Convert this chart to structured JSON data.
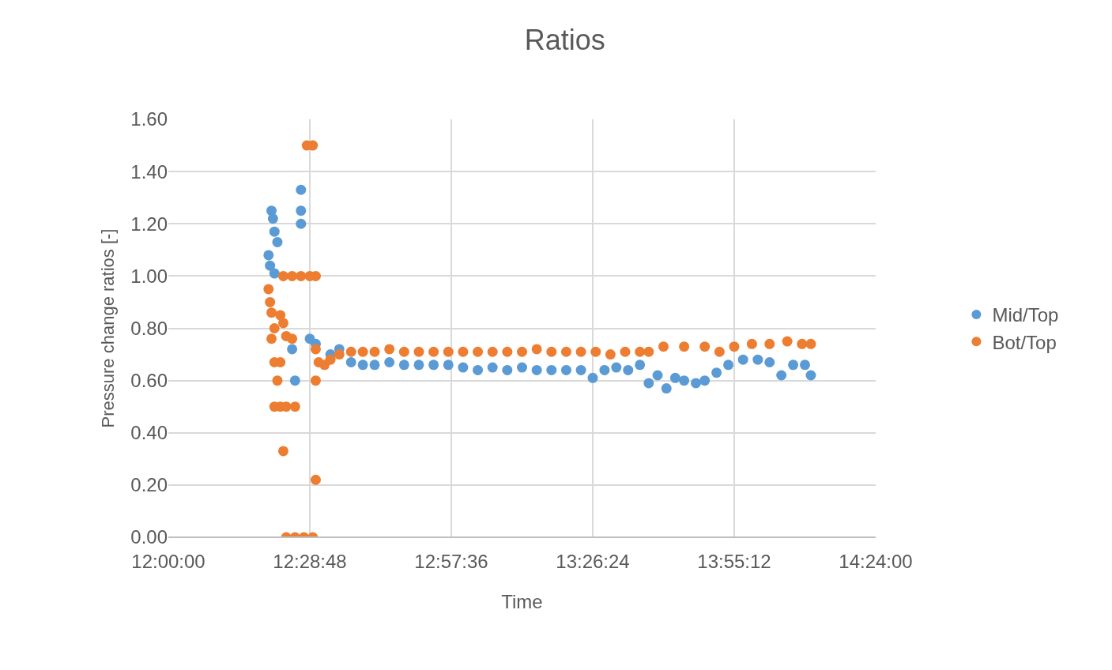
{
  "chart_data": {
    "type": "scatter",
    "title": "Ratios",
    "xlabel": "Time",
    "ylabel": "Pressure change ratios [-]",
    "xlim": [
      12,
      14.4
    ],
    "xticks": [
      {
        "value": 12,
        "label": "12:00:00"
      },
      {
        "value": 12.48,
        "label": "12:28:48"
      },
      {
        "value": 12.96,
        "label": "12:57:36"
      },
      {
        "value": 13.44,
        "label": "13:26:24"
      },
      {
        "value": 13.92,
        "label": "13:55:12"
      },
      {
        "value": 14.4,
        "label": "14:24:00"
      }
    ],
    "ylim": [
      0,
      1.6
    ],
    "yticks": [
      {
        "value": 0,
        "label": "0.00"
      },
      {
        "value": 0.2,
        "label": "0.20"
      },
      {
        "value": 0.4,
        "label": "0.40"
      },
      {
        "value": 0.6,
        "label": "0.60"
      },
      {
        "value": 0.8,
        "label": "0.80"
      },
      {
        "value": 1.0,
        "label": "1.00"
      },
      {
        "value": 1.2,
        "label": "1.20"
      },
      {
        "value": 1.4,
        "label": "1.40"
      },
      {
        "value": 1.6,
        "label": "1.60"
      }
    ],
    "grid": true,
    "legend": "right",
    "marker": "circle",
    "series": [
      {
        "name": "Mid/Top",
        "color": "#5b9bd5",
        "x": [
          12.34,
          12.345,
          12.35,
          12.355,
          12.36,
          12.365,
          12.37,
          12.36,
          12.43,
          12.42,
          12.45,
          12.45,
          12.45,
          12.48,
          12.5,
          12.51,
          12.52,
          12.55,
          12.58,
          12.62,
          12.66,
          12.7,
          12.75,
          12.8,
          12.85,
          12.9,
          12.95,
          13.0,
          13.05,
          13.1,
          13.15,
          13.2,
          13.25,
          13.3,
          13.35,
          13.4,
          13.44,
          13.48,
          13.52,
          13.56,
          13.6,
          13.63,
          13.66,
          13.69,
          13.72,
          13.75,
          13.79,
          13.82,
          13.86,
          13.9,
          13.95,
          14.0,
          14.04,
          14.08,
          14.12,
          14.16,
          14.18
        ],
        "values": [
          1.08,
          1.04,
          1.25,
          1.22,
          1.17,
          null,
          1.13,
          1.01,
          0.6,
          0.72,
          1.33,
          1.25,
          1.2,
          0.76,
          0.74,
          null,
          null,
          0.7,
          0.72,
          0.67,
          0.66,
          0.66,
          0.67,
          0.66,
          0.66,
          0.66,
          0.66,
          0.65,
          0.64,
          0.65,
          0.64,
          0.65,
          0.64,
          0.64,
          0.64,
          0.64,
          0.61,
          0.64,
          0.65,
          0.64,
          0.66,
          0.59,
          0.62,
          0.57,
          0.61,
          0.6,
          0.59,
          0.6,
          0.63,
          0.66,
          0.68,
          0.68,
          0.67,
          0.62,
          0.66,
          0.66,
          0.62
        ]
      },
      {
        "name": "Bot/Top",
        "color": "#ed7d31",
        "x": [
          12.34,
          12.345,
          12.35,
          12.36,
          12.35,
          12.38,
          12.39,
          12.4,
          12.42,
          12.36,
          12.38,
          12.37,
          12.36,
          12.38,
          12.4,
          12.43,
          12.39,
          12.5,
          12.39,
          12.42,
          12.45,
          12.48,
          12.5,
          12.47,
          12.49,
          12.4,
          12.43,
          12.46,
          12.49,
          12.5,
          12.5,
          12.51,
          12.53,
          12.55,
          12.58,
          12.62,
          12.66,
          12.7,
          12.75,
          12.8,
          12.85,
          12.9,
          12.95,
          13.0,
          13.05,
          13.1,
          13.15,
          13.2,
          13.25,
          13.3,
          13.35,
          13.4,
          13.45,
          13.5,
          13.55,
          13.6,
          13.63,
          13.68,
          13.75,
          13.82,
          13.87,
          13.92,
          13.98,
          14.04,
          14.1,
          14.15,
          14.18
        ],
        "values": [
          0.95,
          0.9,
          0.86,
          0.8,
          0.76,
          0.85,
          0.82,
          0.77,
          0.76,
          0.67,
          0.67,
          0.6,
          0.5,
          0.5,
          0.5,
          0.5,
          0.33,
          0.22,
          1.0,
          1.0,
          1.0,
          1.0,
          1.0,
          1.5,
          1.5,
          0.0,
          0.0,
          0.0,
          0.0,
          0.6,
          0.72,
          0.67,
          0.66,
          0.68,
          0.7,
          0.71,
          0.71,
          0.71,
          0.72,
          0.71,
          0.71,
          0.71,
          0.71,
          0.71,
          0.71,
          0.71,
          0.71,
          0.71,
          0.72,
          0.71,
          0.71,
          0.71,
          0.71,
          0.7,
          0.71,
          0.71,
          0.71,
          0.73,
          0.73,
          0.73,
          0.71,
          0.73,
          0.74,
          0.74,
          0.75,
          0.74,
          0.74
        ]
      }
    ]
  }
}
